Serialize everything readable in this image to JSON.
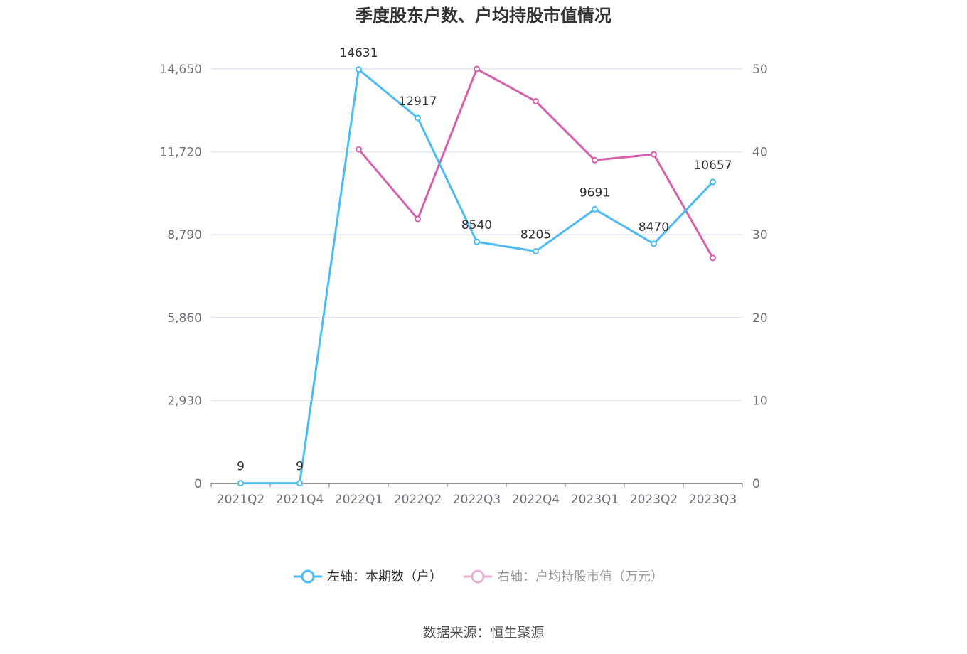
{
  "chart_data": {
    "type": "line",
    "title": "季度股东户数、户均持股市值情况",
    "categories": [
      "2021Q2",
      "2021Q4",
      "2022Q1",
      "2022Q2",
      "2022Q3",
      "2022Q4",
      "2023Q1",
      "2023Q2",
      "2023Q3"
    ],
    "y_left": {
      "ticks": [
        "0",
        "2,930",
        "5,860",
        "8,790",
        "11,720",
        "14,650"
      ],
      "range": [
        0,
        14650
      ]
    },
    "y_right": {
      "ticks": [
        "0",
        "10",
        "20",
        "30",
        "40",
        "50"
      ],
      "range": [
        0,
        50
      ]
    },
    "grid": true,
    "legend_position": "bottom",
    "series": [
      {
        "name": "左轴：本期数（户）",
        "axis": "left",
        "color": "#4cbcf2",
        "values": [
          9,
          9,
          14631,
          12917,
          8540,
          8205,
          9691,
          8470,
          10657
        ],
        "labels": [
          "9",
          "9",
          "14631",
          "12917",
          "8540",
          "8205",
          "9691",
          "8470",
          "10657"
        ]
      },
      {
        "name": "右轴：户均持股市值（万元）",
        "axis": "right",
        "color": "#d660ab",
        "legend_color": "#eab0d4",
        "values": [
          null,
          null,
          40.3,
          31.9,
          50.0,
          46.1,
          39.0,
          39.7,
          27.2
        ]
      }
    ],
    "source": "数据来源：恒生聚源"
  }
}
